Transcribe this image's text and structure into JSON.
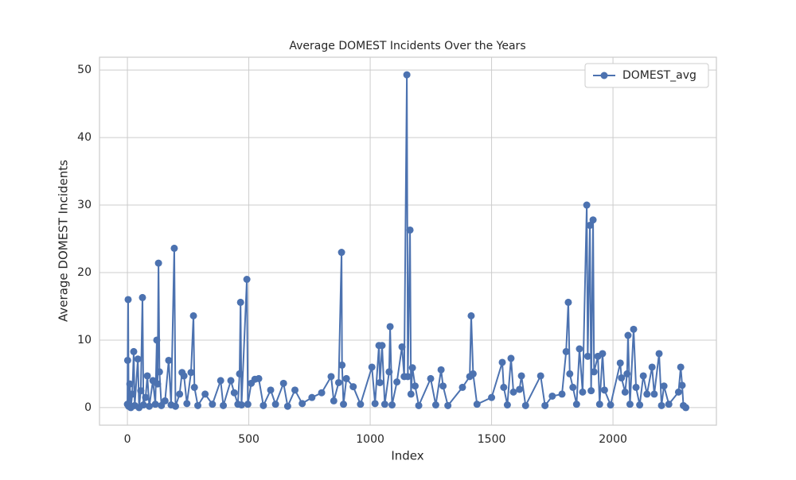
{
  "chart_data": {
    "type": "line",
    "title": "Average DOMEST Incidents Over the Years",
    "x_label": "Index",
    "y_label": "Average DOMEST Incidents",
    "x": [
      0,
      1,
      3,
      5,
      10,
      14,
      20,
      26,
      30,
      43,
      48,
      55,
      62,
      66,
      75,
      82,
      90,
      105,
      115,
      121,
      124,
      128,
      132,
      140,
      155,
      170,
      180,
      193,
      198,
      215,
      225,
      233,
      245,
      262,
      272,
      276,
      290,
      320,
      350,
      384,
      395,
      426,
      440,
      455,
      462,
      466,
      470,
      492,
      496,
      510,
      525,
      541,
      560,
      590,
      610,
      643,
      660,
      690,
      720,
      760,
      800,
      839,
      850,
      870,
      882,
      884,
      890,
      902,
      930,
      960,
      1007,
      1020,
      1036,
      1040,
      1049,
      1060,
      1078,
      1082,
      1090,
      1110,
      1131,
      1140,
      1151,
      1155,
      1164,
      1168,
      1174,
      1185,
      1200,
      1249,
      1270,
      1292,
      1300,
      1320,
      1380,
      1410,
      1416,
      1424,
      1440,
      1500,
      1544,
      1550,
      1565,
      1580,
      1590,
      1615,
      1623,
      1640,
      1702,
      1720,
      1750,
      1790,
      1807,
      1816,
      1822,
      1835,
      1850,
      1862,
      1875,
      1892,
      1896,
      1905,
      1910,
      1918,
      1922,
      1938,
      1945,
      1957,
      1965,
      1990,
      2030,
      2035,
      2050,
      2058,
      2062,
      2070,
      2085,
      2095,
      2110,
      2125,
      2140,
      2161,
      2170,
      2190,
      2200,
      2210,
      2230,
      2270,
      2279,
      2285,
      2290,
      2300
    ],
    "series": [
      {
        "name": "DOMEST_avg",
        "color": "#4c72b0",
        "values": [
          0.5,
          7,
          16,
          0.2,
          3.5,
          0,
          2,
          8.3,
          0.3,
          7.2,
          0,
          2.5,
          16.3,
          0.4,
          1.5,
          4.7,
          0.2,
          4,
          0.5,
          10,
          3.5,
          21.4,
          5.3,
          0.3,
          1,
          7,
          0.4,
          23.6,
          0.2,
          2,
          5.2,
          4.7,
          0.6,
          5.2,
          13.6,
          3,
          0.3,
          2,
          0.5,
          4,
          0.3,
          4,
          2.2,
          0.5,
          5,
          15.6,
          0.4,
          19,
          0.5,
          3.6,
          4.2,
          4.3,
          0.3,
          2.6,
          0.5,
          3.6,
          0.2,
          2.6,
          0.6,
          1.5,
          2.2,
          4.6,
          1,
          3.7,
          23,
          6.3,
          0.5,
          4.3,
          3.1,
          0.5,
          6,
          0.6,
          9.2,
          3.7,
          9.2,
          0.5,
          5.3,
          12,
          0.4,
          3.8,
          9,
          4.6,
          49.3,
          4.6,
          26.3,
          2,
          5.9,
          3.2,
          0.3,
          4.3,
          0.4,
          5.6,
          3.2,
          0.3,
          3,
          4.6,
          13.6,
          5,
          0.5,
          1.5,
          6.7,
          3,
          0.4,
          7.3,
          2.3,
          2.7,
          4.7,
          0.3,
          4.7,
          0.3,
          1.7,
          2,
          8.3,
          15.6,
          5,
          3,
          0.5,
          8.7,
          2.3,
          30,
          7.6,
          27,
          2.5,
          27.8,
          5.3,
          7.6,
          0.5,
          8,
          2.6,
          0.4,
          6.6,
          4.4,
          2.3,
          5,
          10.7,
          0.5,
          11.6,
          3,
          0.4,
          4.7,
          2,
          6,
          2,
          8,
          0.3,
          3.2,
          0.5,
          2.3,
          6,
          3.3,
          0.3,
          0
        ]
      }
    ],
    "xlim": [
      -115,
      2426
    ],
    "ylim": [
      -2.6,
      51.9
    ],
    "xticks": [
      0,
      500,
      1000,
      1500,
      2000
    ],
    "yticks": [
      0,
      10,
      20,
      30,
      40,
      50
    ],
    "grid": true,
    "legend": "upper right"
  }
}
